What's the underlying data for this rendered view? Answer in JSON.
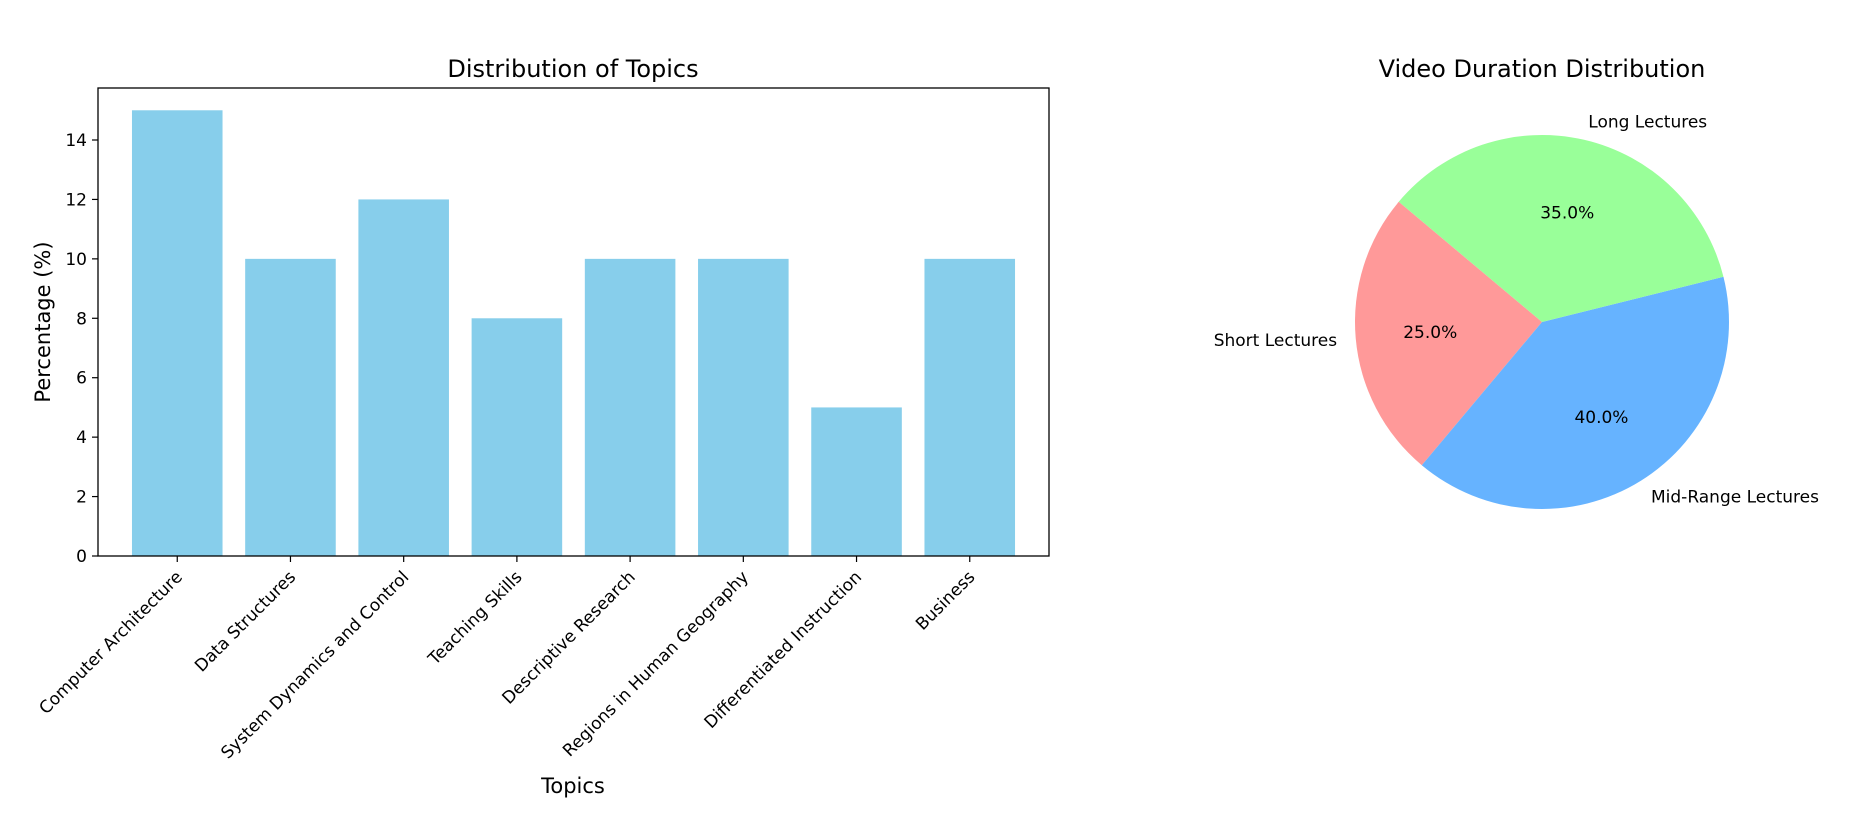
{
  "chart_data": [
    {
      "type": "bar",
      "title": "Distribution of Topics",
      "xlabel": "Topics",
      "ylabel": "Percentage (%)",
      "categories": [
        "Computer Architecture",
        "Data Structures",
        "System Dynamics and Control",
        "Teaching Skills",
        "Descriptive Research",
        "Regions in Human Geography",
        "Differentiated Instruction",
        "Business"
      ],
      "values": [
        15,
        10,
        12,
        8,
        10,
        10,
        5,
        10
      ],
      "ylim": [
        0,
        15.75
      ],
      "yticks": [
        "0",
        "2",
        "4",
        "6",
        "8",
        "10",
        "12",
        "14"
      ],
      "color": "#87ceeb",
      "grid": false
    },
    {
      "type": "pie",
      "title": "Video Duration Distribution",
      "labels": [
        "Short Lectures",
        "Mid-Range Lectures",
        "Long Lectures"
      ],
      "values": [
        25,
        40,
        35
      ],
      "autopct": [
        "25.0%",
        "40.0%",
        "35.0%"
      ],
      "colors": [
        "#ff9999",
        "#66b3ff",
        "#99ff99"
      ],
      "startangle": 140
    }
  ]
}
